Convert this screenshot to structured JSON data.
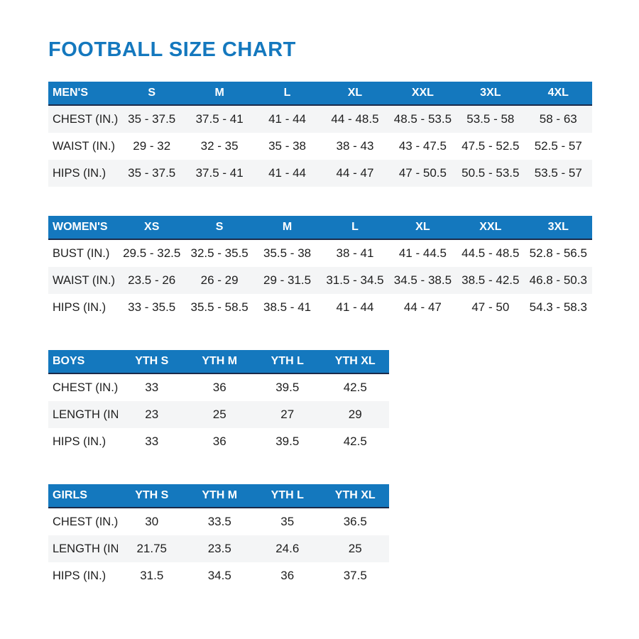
{
  "page": {
    "title": "FOOTBALL SIZE CHART"
  },
  "colors": {
    "accent_blue": "#1478be",
    "header_border": "#1b2b4a",
    "shaded_row": "#f4f5f6",
    "text": "#1e1e1e"
  },
  "tables": [
    {
      "id": "mens",
      "header": [
        "MEN'S",
        "S",
        "M",
        "L",
        "XL",
        "XXL",
        "3XL",
        "4XL"
      ],
      "rows": [
        {
          "label": "CHEST (IN.)",
          "shaded": true,
          "values": [
            "35 - 37.5",
            "37.5 - 41",
            "41 - 44",
            "44 - 48.5",
            "48.5 - 53.5",
            "53.5 - 58",
            "58 - 63"
          ]
        },
        {
          "label": "WAIST (IN.)",
          "shaded": false,
          "values": [
            "29 - 32",
            "32 - 35",
            "35 - 38",
            "38 - 43",
            "43 - 47.5",
            "47.5 - 52.5",
            "52.5 - 57"
          ]
        },
        {
          "label": "HIPS (IN.)",
          "shaded": true,
          "values": [
            "35 - 37.5",
            "37.5 - 41",
            "41 - 44",
            "44 - 47",
            "47 - 50.5",
            "50.5 - 53.5",
            "53.5 - 57"
          ]
        }
      ]
    },
    {
      "id": "womens",
      "header": [
        "WOMEN'S",
        "XS",
        "S",
        "M",
        "L",
        "XL",
        "XXL",
        "3XL"
      ],
      "rows": [
        {
          "label": "BUST (IN.)",
          "shaded": false,
          "values": [
            "29.5 - 32.5",
            "32.5 - 35.5",
            "35.5 - 38",
            "38 - 41",
            "41 - 44.5",
            "44.5 - 48.5",
            "52.8 - 56.5"
          ]
        },
        {
          "label": "WAIST (IN.)",
          "shaded": true,
          "values": [
            "23.5 - 26",
            "26 - 29",
            "29 - 31.5",
            "31.5 - 34.5",
            "34.5 - 38.5",
            "38.5 - 42.5",
            "46.8 - 50.3"
          ]
        },
        {
          "label": "HIPS (IN.)",
          "shaded": false,
          "values": [
            "33 - 35.5",
            "35.5 - 58.5",
            "38.5 - 41",
            "41 - 44",
            "44 - 47",
            "47 - 50",
            "54.3 - 58.3"
          ]
        }
      ]
    },
    {
      "id": "boys",
      "header": [
        "BOYS",
        "YTH S",
        "YTH M",
        "YTH L",
        "YTH XL"
      ],
      "rows": [
        {
          "label": "CHEST (IN.)",
          "shaded": false,
          "values": [
            "33",
            "36",
            "39.5",
            "42.5"
          ]
        },
        {
          "label": "LENGTH (IN.)",
          "shaded": true,
          "values": [
            "23",
            "25",
            "27",
            "29"
          ]
        },
        {
          "label": "HIPS (IN.)",
          "shaded": false,
          "values": [
            "33",
            "36",
            "39.5",
            "42.5"
          ]
        }
      ]
    },
    {
      "id": "girls",
      "header": [
        "GIRLS",
        "YTH S",
        "YTH M",
        "YTH L",
        "YTH XL"
      ],
      "rows": [
        {
          "label": "CHEST (IN.)",
          "shaded": false,
          "values": [
            "30",
            "33.5",
            "35",
            "36.5"
          ]
        },
        {
          "label": "LENGTH (IN.)",
          "shaded": true,
          "values": [
            "21.75",
            "23.5",
            "24.6",
            "25"
          ]
        },
        {
          "label": "HIPS (IN.)",
          "shaded": false,
          "values": [
            "31.5",
            "34.5",
            "36",
            "37.5"
          ]
        }
      ]
    }
  ]
}
